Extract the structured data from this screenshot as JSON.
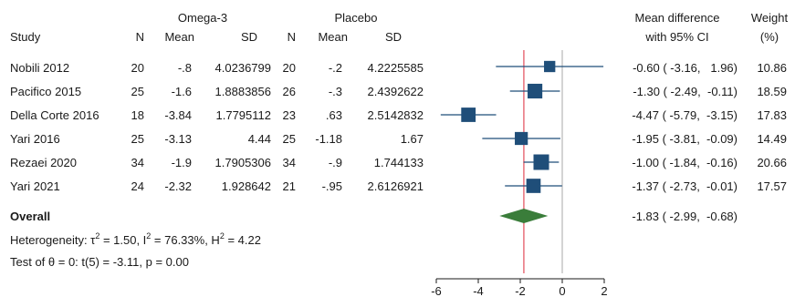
{
  "headers": {
    "group1": "Omega-3",
    "group2": "Placebo",
    "effect_line1": "Mean difference",
    "effect_line2": "with 95% CI",
    "weight_line1": "Weight",
    "weight_line2": "(%)",
    "study": "Study",
    "n": "N",
    "mean": "Mean",
    "sd": "SD"
  },
  "studies": [
    {
      "name": "Nobili 2012",
      "n1": "20",
      "mean1": "-.8",
      "sd1": "4.0236799",
      "n2": "20",
      "mean2": "-.2",
      "sd2": "4.2225585",
      "ci_text": "-0.60 ( -3.16,   1.96)",
      "weight_text": "10.86"
    },
    {
      "name": "Pacifico 2015",
      "n1": "25",
      "mean1": "-1.6",
      "sd1": "1.8883856",
      "n2": "26",
      "mean2": "-.3",
      "sd2": "2.4392622",
      "ci_text": "-1.30 ( -2.49,  -0.11)",
      "weight_text": "18.59"
    },
    {
      "name": "Della Corte 2016",
      "n1": "18",
      "mean1": "-3.84",
      "sd1": "1.7795112",
      "n2": "23",
      "mean2": ".63",
      "sd2": "2.5142832",
      "ci_text": "-4.47 ( -5.79,  -3.15)",
      "weight_text": "17.83"
    },
    {
      "name": "Yari 2016",
      "n1": "25",
      "mean1": "-3.13",
      "sd1": "4.44",
      "n2": "25",
      "mean2": "-1.18",
      "sd2": "1.67",
      "ci_text": "-1.95 ( -3.81,  -0.09)",
      "weight_text": "14.49"
    },
    {
      "name": "Rezaei 2020",
      "n1": "34",
      "mean1": "-1.9",
      "sd1": "1.7905306",
      "n2": "34",
      "mean2": "-.9",
      "sd2": "1.744133",
      "ci_text": "-1.00 ( -1.84,  -0.16)",
      "weight_text": "20.66"
    },
    {
      "name": "Yari 2021",
      "n1": "24",
      "mean1": "-2.32",
      "sd1": "1.928642",
      "n2": "21",
      "mean2": "-.95",
      "sd2": "2.6126921",
      "ci_text": "-1.37 ( -2.73,  -0.01)",
      "weight_text": "17.57"
    }
  ],
  "overall": {
    "label": "Overall",
    "ci_text": "-1.83 ( -2.99,  -0.68)",
    "heterogeneity_prefix": "Heterogeneity: τ",
    "tau_exp": "2",
    "tau_val": " = 1.50, I",
    "i_exp": "2",
    "i_val": " = 76.33%, H",
    "h_exp": "2",
    "h_val": " = 4.22",
    "test_text": "Test of θ = 0: t(5) = -3.11, p = 0.00"
  },
  "chart_data": {
    "type": "scatter",
    "xlim": [
      -6,
      2
    ],
    "x_ticks": [
      -6,
      -4,
      -2,
      0,
      2
    ],
    "null_line": 0,
    "estimates": [
      {
        "study": "Nobili 2012",
        "estimate": -0.6,
        "lower": -3.16,
        "upper": 1.96,
        "weight": 10.86
      },
      {
        "study": "Pacifico 2015",
        "estimate": -1.3,
        "lower": -2.49,
        "upper": -0.11,
        "weight": 18.59
      },
      {
        "study": "Della Corte 2016",
        "estimate": -4.47,
        "lower": -5.79,
        "upper": -3.15,
        "weight": 17.83
      },
      {
        "study": "Yari 2016",
        "estimate": -1.95,
        "lower": -3.81,
        "upper": -0.09,
        "weight": 14.49
      },
      {
        "study": "Rezaei 2020",
        "estimate": -1.0,
        "lower": -1.84,
        "upper": -0.16,
        "weight": 20.66
      },
      {
        "study": "Yari 2021",
        "estimate": -1.37,
        "lower": -2.73,
        "upper": -0.01,
        "weight": 17.57
      }
    ],
    "overall": {
      "estimate": -1.83,
      "lower": -2.99,
      "upper": -0.68
    },
    "colors": {
      "marker": "#1f4e79",
      "diamond": "#3a7d3a",
      "overall_line": "#e8707a",
      "null_line": "#a8a8a8",
      "axis": "#1a1a1a"
    }
  }
}
